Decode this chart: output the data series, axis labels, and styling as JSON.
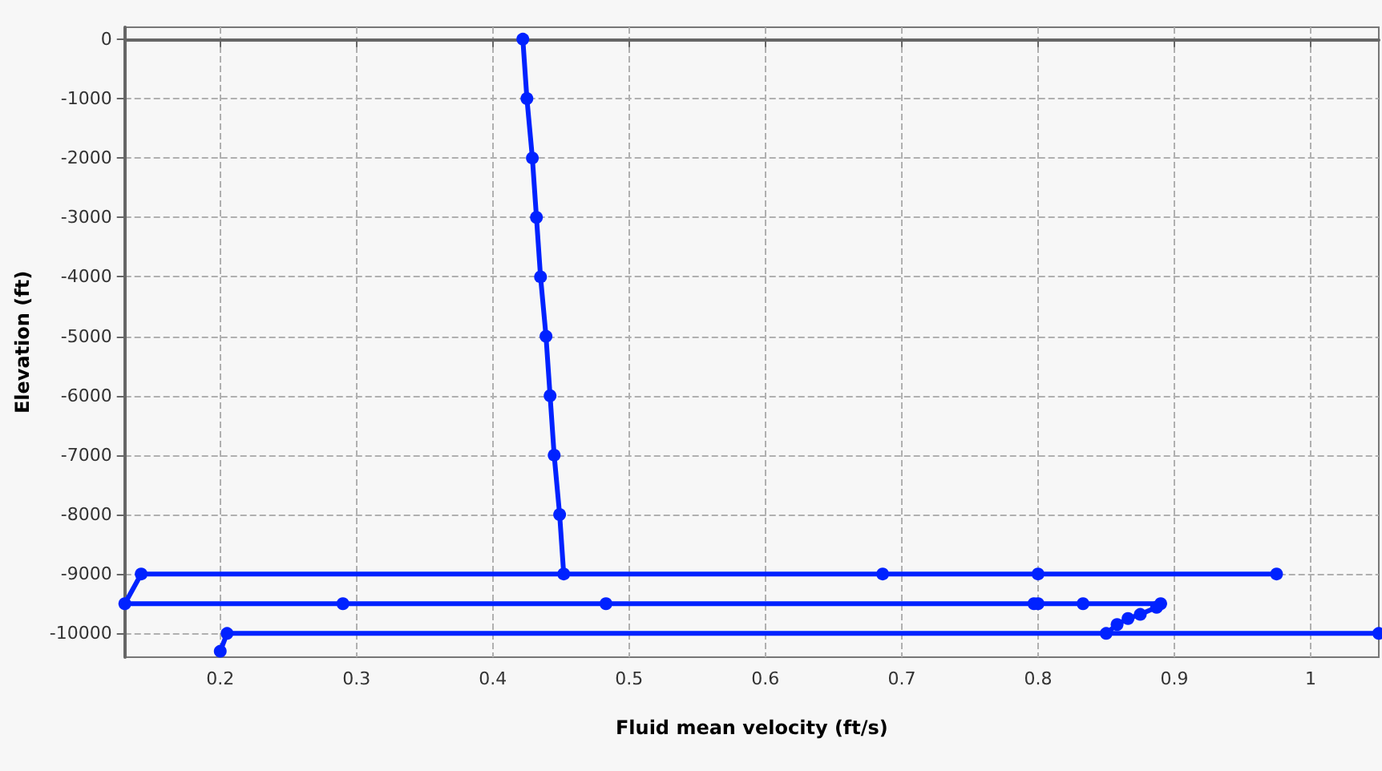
{
  "chart_data": {
    "type": "line",
    "xlabel": "Fluid mean velocity (ft/s)",
    "ylabel": "Elevation (ft)",
    "xlim": [
      0.13,
      1.05
    ],
    "xticks": [
      0.2,
      0.3,
      0.4,
      0.5,
      0.6,
      0.7,
      0.8,
      0.9,
      1
    ],
    "ylim": [
      -10400,
      200
    ],
    "yticks": [
      0,
      -1000,
      -2000,
      -3000,
      -4000,
      -5000,
      -6000,
      -7000,
      -8000,
      -9000,
      -10000
    ],
    "grid": true,
    "marker": "circle",
    "line_style": "solid",
    "series": [
      {
        "color": "#0022ff",
        "x": [
          0.422,
          0.425,
          0.429,
          0.432,
          0.435,
          0.439,
          0.442,
          0.445,
          0.449,
          0.452,
          0.686,
          0.8,
          0.975,
          0.142,
          0.13,
          0.29,
          0.483,
          0.797,
          0.8,
          0.833,
          0.89,
          0.887,
          0.875,
          0.866,
          0.858,
          0.85,
          1.05,
          0.205,
          0.2
        ],
        "values": [
          0,
          -1000,
          -2000,
          -3000,
          -4000,
          -5000,
          -6000,
          -7000,
          -8000,
          -9000,
          -9000,
          -9000,
          -9000,
          -9000,
          -9500,
          -9500,
          -9500,
          -9500,
          -9500,
          -9500,
          -9500,
          -9560,
          -9680,
          -9750,
          -9850,
          -10000,
          -10000,
          -10000,
          -10300
        ]
      }
    ]
  }
}
